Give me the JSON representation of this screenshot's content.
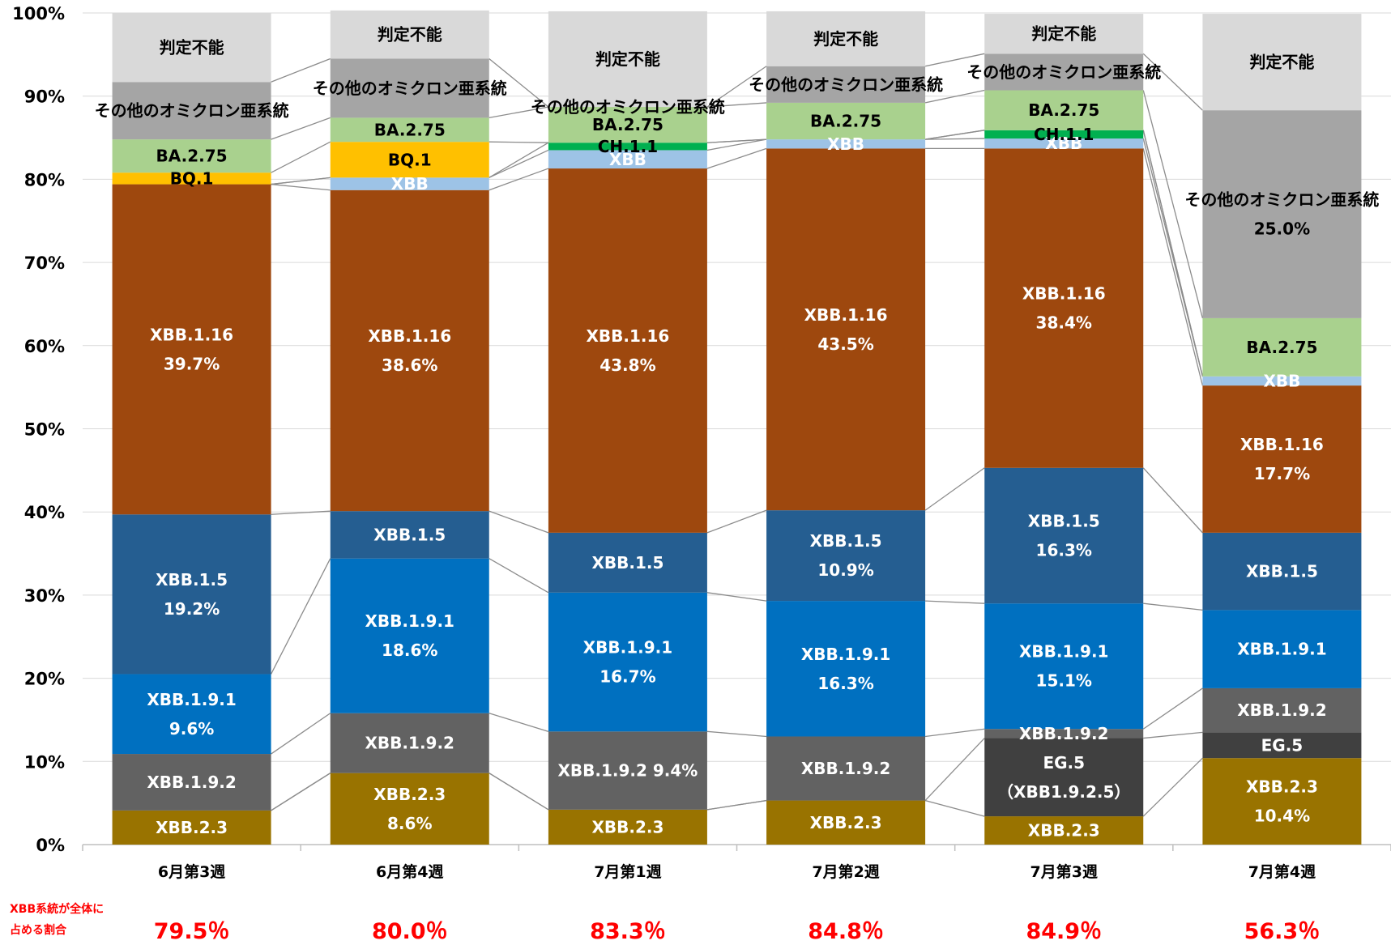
{
  "chart_data": {
    "type": "bar",
    "stacked": true,
    "y_axis": {
      "min": 0,
      "max": 100,
      "step": 10,
      "tick_suffix": "%"
    },
    "grid": true,
    "categories": [
      "6月第3週",
      "6月第4週",
      "7月第1週",
      "7月第2週",
      "7月第3週",
      "7月第4週"
    ],
    "series": [
      {
        "key": "xbb23",
        "color": "#997300",
        "text_color": "#ffffff",
        "values": [
          4.1,
          8.6,
          4.2,
          5.3,
          3.4,
          10.4
        ],
        "labels": [
          "XBB.2.3",
          "XBB.2.3\n8.6%",
          "XBB.2.3",
          "XBB.2.3",
          "XBB.2.3",
          "XBB.2.3\n10.4%"
        ]
      },
      {
        "key": "eg5",
        "color": "#404040",
        "text_color": "#ffffff",
        "values": [
          0,
          0,
          0,
          0,
          9.4,
          3.1
        ],
        "labels": [
          "",
          "",
          "",
          "",
          "EG.5\n（XBB1.9.2.5）",
          "EG.5"
        ]
      },
      {
        "key": "xbb192",
        "color": "#626262",
        "text_color": "#ffffff",
        "values": [
          6.8,
          7.2,
          9.4,
          7.7,
          1.1,
          5.3
        ],
        "labels": [
          "XBB.1.9.2",
          "XBB.1.9.2",
          "XBB.1.9.2 9.4%",
          "XBB.1.9.2",
          "XBB.1.9.2",
          "XBB.1.9.2"
        ]
      },
      {
        "key": "xbb191",
        "color": "#0070c0",
        "text_color": "#ffffff",
        "values": [
          9.6,
          18.6,
          16.7,
          16.3,
          15.1,
          9.4
        ],
        "labels": [
          "XBB.1.9.1\n9.6%",
          "XBB.1.9.1\n18.6%",
          "XBB.1.9.1\n16.7%",
          "XBB.1.9.1\n16.3%",
          "XBB.1.9.1\n15.1%",
          "XBB.1.9.1"
        ]
      },
      {
        "key": "xbb15",
        "color": "#255e91",
        "text_color": "#ffffff",
        "values": [
          19.2,
          5.7,
          7.2,
          10.9,
          16.3,
          9.3
        ],
        "labels": [
          "XBB.1.5\n19.2%",
          "XBB.1.5",
          "XBB.1.5",
          "XBB.1.5\n10.9%",
          "XBB.1.5\n16.3%",
          "XBB.1.5"
        ]
      },
      {
        "key": "xbb116",
        "color": "#9e480e",
        "text_color": "#ffffff",
        "values": [
          39.7,
          38.6,
          43.8,
          43.5,
          38.4,
          17.7
        ],
        "labels": [
          "XBB.1.16\n39.7%",
          "XBB.1.16\n38.6%",
          "XBB.1.16\n43.8%",
          "XBB.1.16\n43.5%",
          "XBB.1.16\n38.4%",
          "XBB.1.16\n17.7%"
        ]
      },
      {
        "key": "xbb",
        "color": "#9dc3e6",
        "text_color": "#ffffff",
        "values": [
          0,
          1.5,
          2.2,
          1.1,
          1.2,
          1.1
        ],
        "labels": [
          "",
          "XBB",
          "XBB",
          "XBB",
          "XBB",
          "XBB"
        ]
      },
      {
        "key": "ch11",
        "color": "#00b050",
        "text_color": "#000000",
        "values": [
          0,
          0,
          0.9,
          0,
          1.0,
          0
        ],
        "labels": [
          "",
          "",
          "CH.1.1",
          "",
          "CH.1.1",
          ""
        ]
      },
      {
        "key": "bq1",
        "color": "#ffc000",
        "text_color": "#000000",
        "values": [
          1.4,
          4.3,
          0,
          0,
          0,
          0
        ],
        "labels": [
          "BQ.1",
          "BQ.1",
          "",
          "",
          "",
          ""
        ]
      },
      {
        "key": "ba275",
        "color": "#a9d18e",
        "text_color": "#000000",
        "values": [
          4.0,
          2.9,
          4.3,
          4.4,
          4.8,
          7.0
        ],
        "labels": [
          "BA.2.75",
          "BA.2.75",
          "BA.2.75",
          "BA.2.75",
          "BA.2.75",
          "BA.2.75"
        ]
      },
      {
        "key": "other",
        "color": "#a5a5a5",
        "text_color": "#000000",
        "values": [
          6.9,
          7.1,
          0,
          4.4,
          4.4,
          25.0
        ],
        "labels": [
          "その他のオミクロン亜系統",
          "その他のオミクロン亜系統",
          "その他のオミクロン亜系統",
          "その他のオミクロン亜系統",
          "その他のオミクロン亜系統",
          "その他のオミクロン亜系統\n25.0%"
        ]
      },
      {
        "key": "unknown",
        "color": "#d9d9d9",
        "text_color": "#000000",
        "values": [
          8.3,
          5.8,
          11.5,
          6.6,
          4.8,
          11.6
        ],
        "labels": [
          "判定不能",
          "判定不能",
          "判定不能",
          "判定不能",
          "判定不能",
          "判定不能"
        ]
      }
    ]
  },
  "footer": {
    "title": "XBB系統が全体に占める割合",
    "xbb_share": [
      "79.5％",
      "80.0％",
      "83.3％",
      "84.8％",
      "84.9％",
      "56.3％"
    ]
  }
}
